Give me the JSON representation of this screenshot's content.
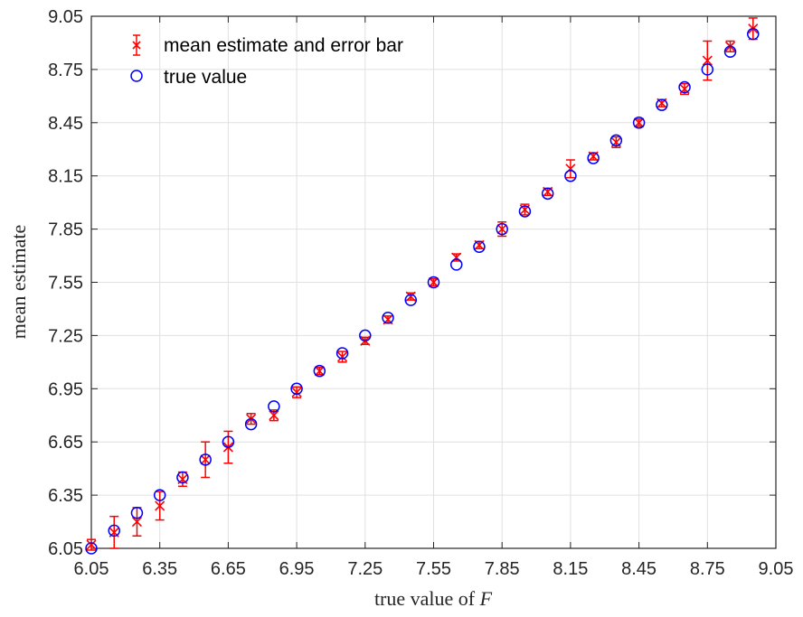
{
  "chart_data": {
    "type": "scatter",
    "title": "",
    "xlabel_text": "true value of ",
    "xlabel_var": "F",
    "ylabel": "mean estimate",
    "xlim": [
      6.05,
      9.05
    ],
    "ylim": [
      6.05,
      9.05
    ],
    "x_ticks": [
      "6.05",
      "6.35",
      "6.65",
      "6.95",
      "7.25",
      "7.55",
      "7.85",
      "8.15",
      "8.45",
      "8.75",
      "9.05"
    ],
    "y_ticks": [
      "6.05",
      "6.35",
      "6.65",
      "6.95",
      "7.25",
      "7.55",
      "7.85",
      "8.15",
      "8.45",
      "8.75",
      "9.05"
    ],
    "grid": true,
    "legend_position": "top-left",
    "series": [
      {
        "name": "mean estimate and error bar",
        "marker": "x",
        "color": "#ff0000",
        "x": [
          6.05,
          6.15,
          6.25,
          6.35,
          6.45,
          6.55,
          6.65,
          6.75,
          6.85,
          6.95,
          7.05,
          7.15,
          7.25,
          7.35,
          7.45,
          7.55,
          7.65,
          7.75,
          7.85,
          7.95,
          8.05,
          8.15,
          8.25,
          8.35,
          8.45,
          8.55,
          8.65,
          8.75,
          8.85,
          8.95
        ],
        "y": [
          6.07,
          6.14,
          6.2,
          6.29,
          6.44,
          6.55,
          6.62,
          6.78,
          6.8,
          6.93,
          7.05,
          7.13,
          7.22,
          7.34,
          7.47,
          7.55,
          7.69,
          7.76,
          7.85,
          7.96,
          8.06,
          8.19,
          8.26,
          8.34,
          8.45,
          8.56,
          8.64,
          8.8,
          8.88,
          8.98
        ],
        "err": [
          0.03,
          0.09,
          0.08,
          0.08,
          0.04,
          0.1,
          0.09,
          0.03,
          0.03,
          0.03,
          0.02,
          0.03,
          0.02,
          0.02,
          0.02,
          0.02,
          0.02,
          0.02,
          0.04,
          0.03,
          0.02,
          0.05,
          0.02,
          0.03,
          0.02,
          0.02,
          0.03,
          0.11,
          0.03,
          0.06
        ]
      },
      {
        "name": "true value",
        "marker": "circle",
        "color": "#0000ff",
        "x": [
          6.05,
          6.15,
          6.25,
          6.35,
          6.45,
          6.55,
          6.65,
          6.75,
          6.85,
          6.95,
          7.05,
          7.15,
          7.25,
          7.35,
          7.45,
          7.55,
          7.65,
          7.75,
          7.85,
          7.95,
          8.05,
          8.15,
          8.25,
          8.35,
          8.45,
          8.55,
          8.65,
          8.75,
          8.85,
          8.95
        ],
        "y": [
          6.05,
          6.15,
          6.25,
          6.35,
          6.45,
          6.55,
          6.65,
          6.75,
          6.85,
          6.95,
          7.05,
          7.15,
          7.25,
          7.35,
          7.45,
          7.55,
          7.65,
          7.75,
          7.85,
          7.95,
          8.05,
          8.15,
          8.25,
          8.35,
          8.45,
          8.55,
          8.65,
          8.75,
          8.85,
          8.95
        ]
      }
    ]
  }
}
